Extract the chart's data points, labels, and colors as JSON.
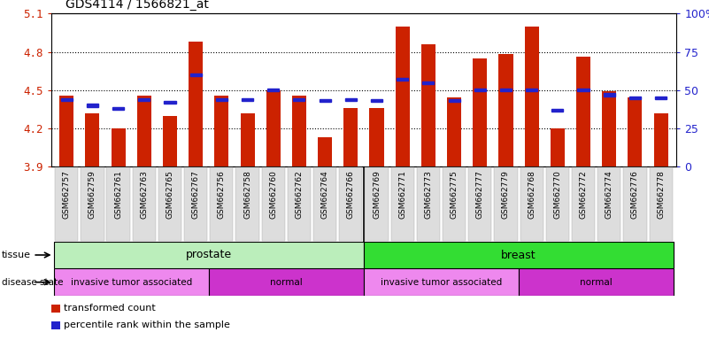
{
  "title": "GDS4114 / 1566821_at",
  "samples": [
    "GSM662757",
    "GSM662759",
    "GSM662761",
    "GSM662763",
    "GSM662765",
    "GSM662767",
    "GSM662756",
    "GSM662758",
    "GSM662760",
    "GSM662762",
    "GSM662764",
    "GSM662766",
    "GSM662769",
    "GSM662771",
    "GSM662773",
    "GSM662775",
    "GSM662777",
    "GSM662779",
    "GSM662768",
    "GSM662770",
    "GSM662772",
    "GSM662774",
    "GSM662776",
    "GSM662778"
  ],
  "bar_values": [
    4.46,
    4.32,
    4.2,
    4.46,
    4.3,
    4.88,
    4.46,
    4.32,
    4.5,
    4.46,
    4.13,
    4.36,
    4.36,
    5.0,
    4.86,
    4.44,
    4.75,
    4.78,
    5.0,
    4.2,
    4.76,
    4.49,
    4.44,
    4.32
  ],
  "percentile_values": [
    44,
    40,
    38,
    44,
    42,
    60,
    44,
    44,
    50,
    44,
    43,
    44,
    43,
    57,
    55,
    43,
    50,
    50,
    50,
    37,
    50,
    47,
    45,
    45
  ],
  "y_min": 3.9,
  "y_max": 5.1,
  "y_ticks": [
    3.9,
    4.2,
    4.5,
    4.8,
    5.1
  ],
  "right_y_ticks": [
    0,
    25,
    50,
    75,
    100
  ],
  "bar_color": "#cc2200",
  "blue_color": "#2222cc",
  "tissue_groups": [
    {
      "label": "prostate",
      "start": 0,
      "end": 12,
      "color": "#bbeebb"
    },
    {
      "label": "breast",
      "start": 12,
      "end": 24,
      "color": "#33dd33"
    }
  ],
  "disease_groups": [
    {
      "label": "invasive tumor associated",
      "start": 0,
      "end": 6,
      "color": "#ee88ee"
    },
    {
      "label": "normal",
      "start": 6,
      "end": 12,
      "color": "#cc33cc"
    },
    {
      "label": "invasive tumor associated",
      "start": 12,
      "end": 18,
      "color": "#ee88ee"
    },
    {
      "label": "normal",
      "start": 18,
      "end": 24,
      "color": "#cc33cc"
    }
  ],
  "legend_items": [
    {
      "label": "transformed count",
      "color": "#cc2200"
    },
    {
      "label": "percentile rank within the sample",
      "color": "#2222cc"
    }
  ],
  "gridline_y": [
    4.2,
    4.5,
    4.8
  ],
  "xticklabel_bg": "#e0e0e0"
}
